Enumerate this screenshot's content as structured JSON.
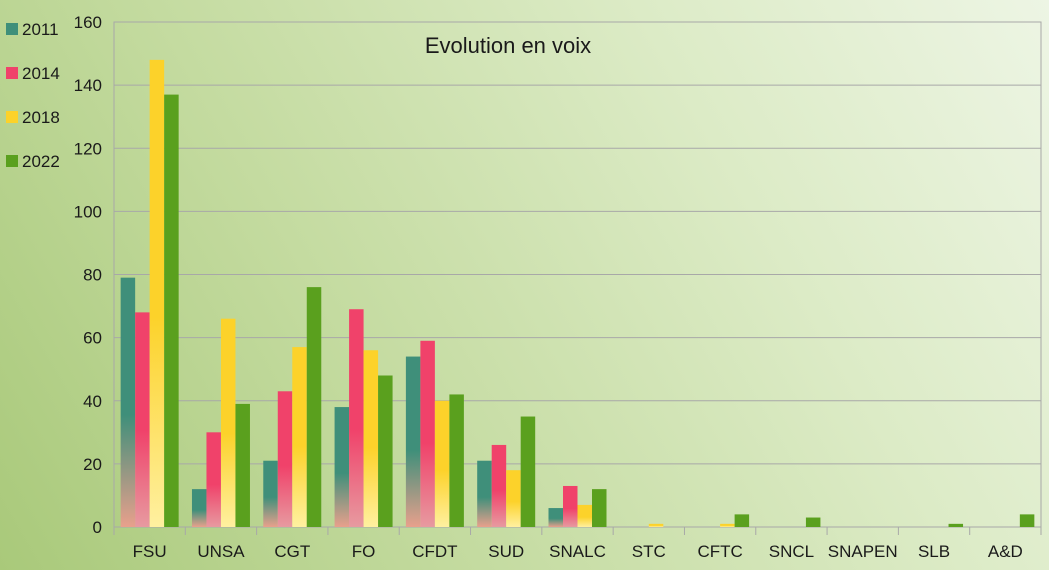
{
  "chart_data": {
    "type": "bar",
    "title": "Evolution en voix",
    "categories": [
      "FSU",
      "UNSA",
      "CGT",
      "FO",
      "CFDT",
      "SUD",
      "SNALC",
      "STC",
      "CFTC",
      "SNCL",
      "SNAPEN",
      "SLB",
      "A&D"
    ],
    "series": [
      {
        "name": "2011",
        "color": "#3f8f7a",
        "values": [
          79,
          12,
          21,
          38,
          54,
          21,
          6,
          0,
          0,
          0,
          0,
          0,
          0
        ]
      },
      {
        "name": "2014",
        "color": "#f0426a",
        "values": [
          68,
          30,
          43,
          69,
          59,
          26,
          13,
          0,
          0,
          0,
          0,
          0,
          0
        ]
      },
      {
        "name": "2018",
        "color": "#fcd22a",
        "values": [
          148,
          66,
          57,
          56,
          40,
          18,
          7,
          1,
          1,
          0,
          0,
          0,
          0
        ]
      },
      {
        "name": "2022",
        "color": "#5aa01e",
        "values": [
          137,
          39,
          76,
          48,
          42,
          35,
          12,
          0,
          4,
          3,
          0,
          1,
          4
        ]
      }
    ],
    "ylim": [
      0,
      160
    ],
    "yticks": [
      0,
      20,
      40,
      60,
      80,
      100,
      120,
      140,
      160
    ],
    "grid": true,
    "legend_position": "left"
  }
}
